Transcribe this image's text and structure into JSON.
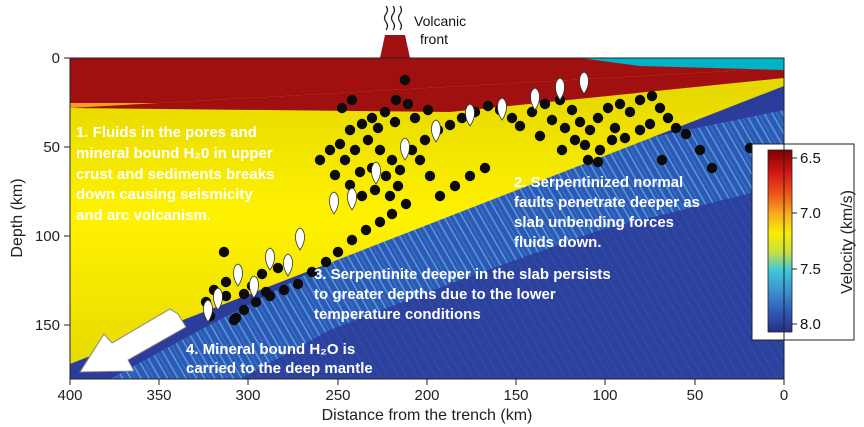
{
  "figure": {
    "x_axis_label": "Distance from the trench (km)",
    "y_axis_label": "Depth (km)",
    "x_ticks": [
      "400",
      "350",
      "300",
      "250",
      "200",
      "150",
      "100",
      "50",
      "0"
    ],
    "y_ticks": [
      "0",
      "50",
      "100",
      "150"
    ],
    "volcanic_front_label": [
      "Volcanic",
      "front"
    ],
    "annotations": [
      {
        "lines": [
          "1. Fluids in the pores and",
          "mineral bound H₂0 in upper",
          "crust and sediments breaks",
          "down causing seismicity",
          "and arc volcanism."
        ]
      },
      {
        "lines": [
          "2. Serpentinized normal",
          "faults penetrate deeper as",
          "slab unbending forces",
          "fluids down."
        ]
      },
      {
        "lines": [
          "3. Serpentinite deeper in the slab persists",
          "to greater depths due to the lower",
          "temperature conditions"
        ]
      },
      {
        "lines": [
          "4. Mineral bound H₂O is",
          "carried to the deep mantle"
        ]
      }
    ],
    "colorbar": {
      "label": "Velocity (km/s)",
      "ticks": [
        "6.5",
        "7.0",
        "7.5",
        "8.0"
      ]
    },
    "colors": {
      "crust": "#a01010",
      "mantle": "#2b3c9a",
      "slab_band": "#f5ec00",
      "ocean": "#00b4c8"
    }
  }
}
